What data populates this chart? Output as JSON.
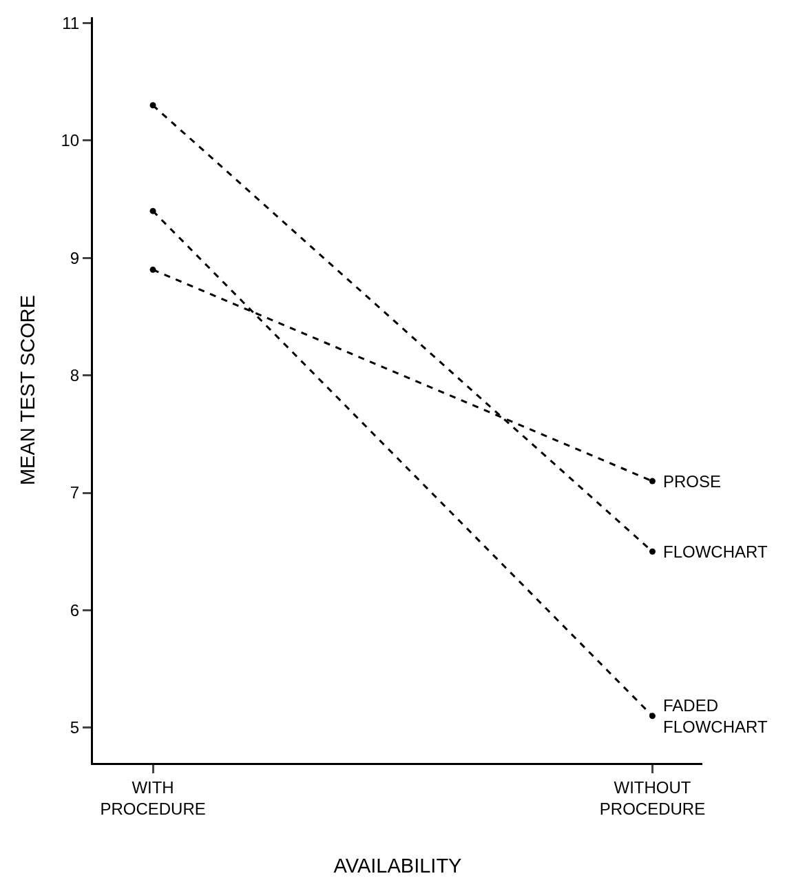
{
  "chart_data": {
    "type": "line",
    "xlabel": "AVAILABILITY",
    "ylabel": "MEAN TEST SCORE",
    "categories": [
      "WITH\nPROCEDURE",
      "WITHOUT\nPROCEDURE"
    ],
    "series": [
      {
        "name": "PROSE",
        "color": "#000000",
        "values": [
          8.9,
          7.1
        ]
      },
      {
        "name": "FLOWCHART",
        "color": "#000000",
        "values": [
          10.3,
          6.5
        ]
      },
      {
        "name": "FADED\nFLOWCHART",
        "color": "#000000",
        "values": [
          9.4,
          5.1
        ]
      }
    ],
    "ylim": [
      4.7,
      11.05
    ],
    "yticks": [
      5,
      6,
      7,
      8,
      9,
      10,
      11
    ],
    "grid": false,
    "legend": false,
    "marker": "circle",
    "line_style": "dashed"
  }
}
